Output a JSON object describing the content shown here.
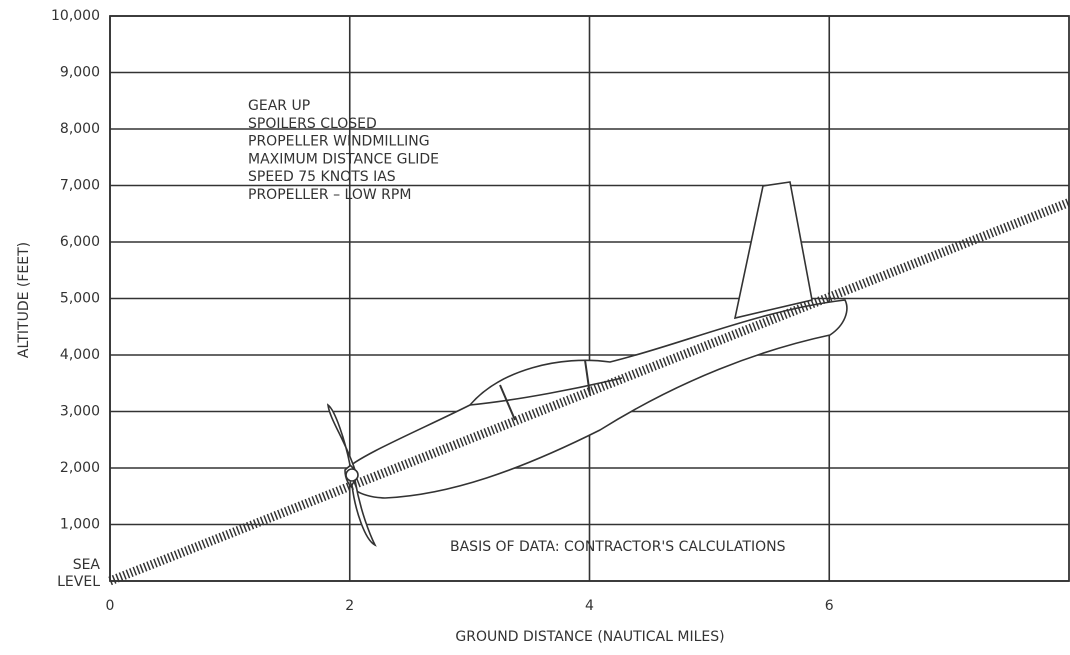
{
  "chart_data": {
    "type": "line",
    "y_label": "ALTITUDE (FEET)",
    "x_label": "GROUND DISTANCE (NAUTICAL MILES)",
    "x": [
      0,
      8
    ],
    "values": [
      0,
      6700
    ],
    "color": "#333333",
    "xlim": [
      0,
      8
    ],
    "xticks": [
      0,
      2,
      4,
      6
    ],
    "ylim": [
      0,
      10000
    ],
    "yticks": [
      {
        "value": 0,
        "label": "SEA LEVEL"
      },
      {
        "value": 1000,
        "label": "1,000"
      },
      {
        "value": 2000,
        "label": "2,000"
      },
      {
        "value": 3000,
        "label": "3,000"
      },
      {
        "value": 4000,
        "label": "4,000"
      },
      {
        "value": 5000,
        "label": "5,000"
      },
      {
        "value": 6000,
        "label": "6,000"
      },
      {
        "value": 7000,
        "label": "7,000"
      },
      {
        "value": 8000,
        "label": "8,000"
      },
      {
        "value": 9000,
        "label": "9,000"
      },
      {
        "value": 10000,
        "label": "10,000"
      }
    ],
    "grid": true,
    "annotations": [
      "GEAR UP",
      "SPOILERS CLOSED",
      "PROPELLER WINDMILLING",
      "MAXIMUM DISTANCE GLIDE",
      "SPEED 75 KNOTS IAS",
      "PROPELLER – LOW RPM"
    ],
    "note": "BASIS OF DATA:  CONTRACTOR'S CALCULATIONS"
  }
}
